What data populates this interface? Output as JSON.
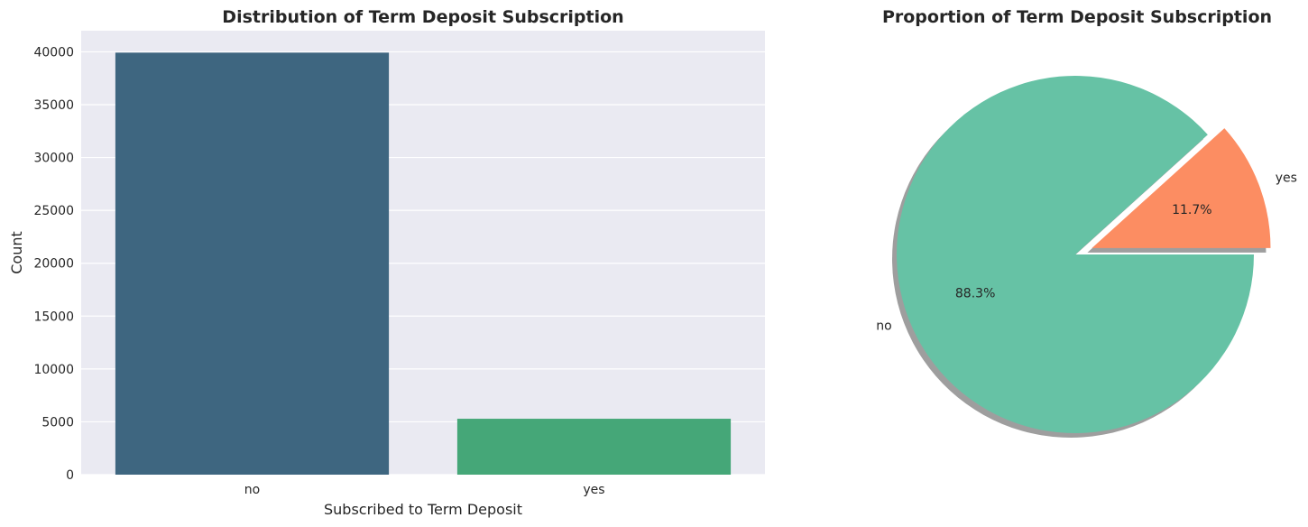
{
  "chart_data": [
    {
      "type": "bar",
      "title": "Distribution of Term Deposit Subscription",
      "xlabel": "Subscribed to Term Deposit",
      "ylabel": "Count",
      "categories": [
        "no",
        "yes"
      ],
      "values": [
        39922,
        5289
      ],
      "colors": [
        "#3e6680",
        "#45a778"
      ],
      "ylim": [
        0,
        42000
      ],
      "yticks": [
        0,
        5000,
        10000,
        15000,
        20000,
        25000,
        30000,
        35000,
        40000
      ],
      "grid": true,
      "background": "#eaeaf2"
    },
    {
      "type": "pie",
      "title": "Proportion of Term Deposit Subscription",
      "labels": [
        "no",
        "yes"
      ],
      "values": [
        88.3,
        11.7
      ],
      "pct_labels": [
        "88.3%",
        "11.7%"
      ],
      "colors": [
        "#66c2a5",
        "#fc8d62"
      ],
      "explode": [
        0,
        0.1
      ],
      "shadow": true
    }
  ]
}
